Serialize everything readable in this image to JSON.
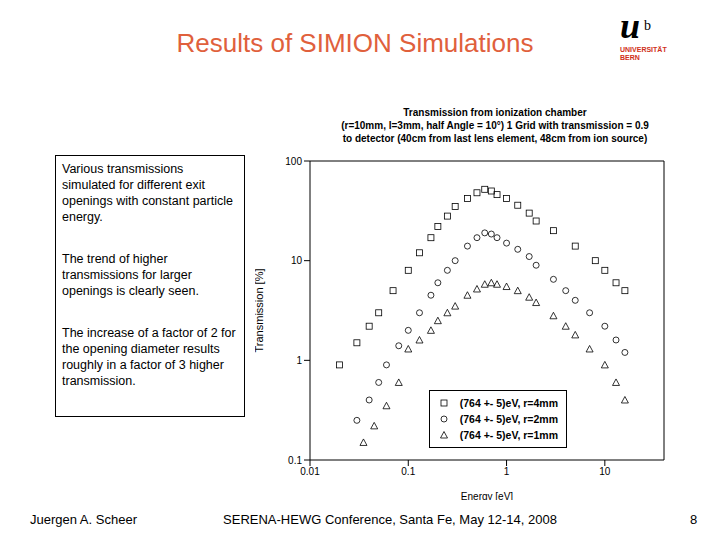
{
  "slide": {
    "title": "Results of SIMION Simulations",
    "logo": {
      "letter": "u",
      "superscript": "b",
      "lines": [
        "UNIVERSITÄT",
        "BERN"
      ]
    },
    "notes": [
      "Various transmissions simulated for different exit openings with constant particle energy.",
      "The trend of higher transmissions for larger openings is clearly seen.",
      "The increase of a factor of 2 for the opening diameter results roughly in a factor of 3 higher transmission."
    ],
    "footer": {
      "author": "Juergen A. Scheer",
      "event": "SERENA-HEWG Conference, Santa Fe, May 12-14, 2008",
      "page": "8"
    }
  },
  "chart_data": {
    "type": "scatter",
    "title": [
      "Transmission from ionization chamber",
      "(r=10mm, l=3mm, half Angle = 10°) 1 Grid with transmission = 0.9",
      "to detector (40cm from last lens element, 48cm from ion source)"
    ],
    "x_label": "Energy [eV]",
    "y_label": "Transmission [%]",
    "log": true,
    "grid": false,
    "legend": "lower right",
    "xlim": [
      0.01,
      40
    ],
    "xticks": [
      0.01,
      0.1,
      1,
      10
    ],
    "ylim": [
      0.1,
      100
    ],
    "yticks": [
      0.1,
      1,
      10,
      100
    ],
    "series": [
      {
        "name": "(764 +- 5)eV, r=4mm",
        "color": "#000000",
        "marker": "square",
        "x": [
          0.02,
          0.03,
          0.04,
          0.05,
          0.07,
          0.1,
          0.13,
          0.17,
          0.2,
          0.25,
          0.3,
          0.4,
          0.5,
          0.6,
          0.7,
          0.8,
          1,
          1.3,
          1.7,
          2,
          3,
          5,
          8,
          10,
          13,
          16
        ],
        "values": [
          0.9,
          1.5,
          2.2,
          3,
          5,
          8,
          12,
          17,
          22,
          28,
          35,
          42,
          48,
          52,
          50,
          46,
          42,
          36,
          30,
          25,
          20,
          14,
          10,
          8,
          6,
          5
        ]
      },
      {
        "name": "(764 +- 5)eV, r=2mm",
        "color": "#000000",
        "marker": "circle",
        "x": [
          0.03,
          0.04,
          0.05,
          0.06,
          0.08,
          0.1,
          0.13,
          0.17,
          0.2,
          0.25,
          0.3,
          0.4,
          0.5,
          0.6,
          0.7,
          0.8,
          1,
          1.3,
          1.7,
          2,
          3,
          4,
          5,
          7,
          10,
          13,
          16
        ],
        "values": [
          0.25,
          0.4,
          0.6,
          0.9,
          1.4,
          2,
          3,
          4.5,
          6,
          8,
          10,
          14,
          17,
          19,
          18.5,
          17,
          15,
          13,
          11,
          9,
          6.5,
          5,
          4,
          3,
          2.2,
          1.6,
          1.2
        ]
      },
      {
        "name": "(764 +- 5)eV, r=1mm",
        "color": "#000000",
        "marker": "triangle",
        "x": [
          0.035,
          0.045,
          0.06,
          0.08,
          0.1,
          0.13,
          0.17,
          0.2,
          0.25,
          0.3,
          0.4,
          0.5,
          0.6,
          0.7,
          0.8,
          1,
          1.3,
          1.7,
          2,
          3,
          4,
          5,
          7,
          10,
          13,
          16
        ],
        "values": [
          0.15,
          0.22,
          0.35,
          0.6,
          1.3,
          1.6,
          2,
          2.5,
          3,
          3.5,
          4.5,
          5.2,
          5.8,
          6,
          5.8,
          5.5,
          5,
          4.3,
          3.8,
          2.8,
          2.2,
          1.8,
          1.3,
          0.9,
          0.6,
          0.4
        ]
      }
    ]
  }
}
